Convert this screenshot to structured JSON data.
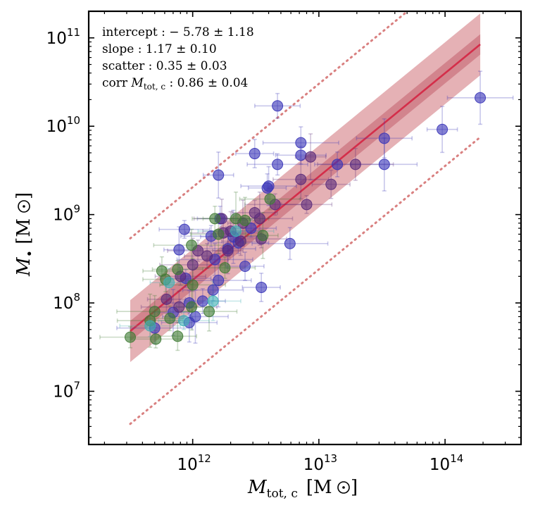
{
  "chart_data": {
    "type": "scatter",
    "xscale": "log",
    "yscale": "log",
    "xlim": [
      150000000000.0,
      400000000000000.0
    ],
    "ylim": [
      2500000.0,
      200000000000.0
    ],
    "xlabel": {
      "main": "M",
      "sub": "tot, c",
      "unit": "[M",
      "unit_close": "]"
    },
    "ylabel": {
      "main": "M",
      "sub": "•",
      "unit": "[M",
      "unit_close": "]"
    },
    "xticks": [
      {
        "value": 1000000000000.0,
        "base": "10",
        "exp": "12"
      },
      {
        "value": 10000000000000.0,
        "base": "10",
        "exp": "13"
      },
      {
        "value": 100000000000000.0,
        "base": "10",
        "exp": "14"
      }
    ],
    "yticks": [
      {
        "value": 10000000.0,
        "base": "10",
        "exp": "7"
      },
      {
        "value": 100000000.0,
        "base": "10",
        "exp": "8"
      },
      {
        "value": 1000000000.0,
        "base": "10",
        "exp": "9"
      },
      {
        "value": 10000000000.0,
        "base": "10",
        "exp": "10"
      },
      {
        "value": 100000000000.0,
        "base": "10",
        "exp": "11"
      }
    ],
    "annotations": [
      "intercept :  − 5.78 ± 1.18",
      "slope :  1.17 ± 0.10",
      "scatter :  0.35 ± 0.03",
      {
        "prefix": "corr ",
        "var": "M",
        "sub": "tot, c",
        "suffix": " :  0.86 ± 0.04"
      }
    ],
    "fit": {
      "intercept": -5.78,
      "slope": 1.17,
      "scatter": 0.35,
      "x_range": [
        320000000000.0,
        190000000000000.0
      ],
      "inner_band": 0.115,
      "line_color": "#d42e4a",
      "band_color": "#e0a3a8",
      "inner_band_color": "#cf7d86",
      "outlier_color": "#d98080"
    },
    "colors": {
      "blue": "#3a35b8",
      "purple": "#5a2a7a",
      "green": "#3f7a34",
      "cyan": "#3fb0b4"
    },
    "series": [
      {
        "name": "blue",
        "points": [
          [
            4700000000000.0,
            17000000000.0
          ],
          [
            190000000000000.0,
            21000000000.0
          ],
          [
            95000000000000.0,
            9200000000.0
          ],
          [
            33000000000000.0,
            7300000000.0
          ],
          [
            7200000000000.0,
            6500000000.0
          ],
          [
            3100000000000.0,
            4900000000.0
          ],
          [
            7200000000000.0,
            4700000000.0
          ],
          [
            4700000000000.0,
            3700000000.0
          ],
          [
            14000000000000.0,
            3700000000.0
          ],
          [
            33000000000000.0,
            3700000000.0
          ],
          [
            1600000000000.0,
            2800000000.0
          ],
          [
            4000000000000.0,
            2100000000.0
          ],
          [
            5900000000000.0,
            470000000.0
          ],
          [
            3500000000000.0,
            150000000.0
          ],
          [
            860000000000.0,
            680000000.0
          ],
          [
            1400000000000.0,
            570000000.0
          ],
          [
            1650000000000.0,
            900000000.0
          ],
          [
            2100000000000.0,
            560000000.0
          ],
          [
            780000000000.0,
            400000000.0
          ],
          [
            1900000000000.0,
            410000000.0
          ],
          [
            1500000000000.0,
            310000000.0
          ],
          [
            2600000000000.0,
            260000000.0
          ],
          [
            880000000000.0,
            190000000.0
          ],
          [
            1450000000000.0,
            140000000.0
          ],
          [
            1200000000000.0,
            105000000.0
          ],
          [
            1050000000000.0,
            70000000.0
          ],
          [
            700000000000.0,
            78000000.0
          ],
          [
            940000000000.0,
            60000000.0
          ],
          [
            500000000000.0,
            52000000.0
          ],
          [
            3900000000000.0,
            2000000000.0
          ],
          [
            2900000000000.0,
            700000000.0
          ],
          [
            2300000000000.0,
            480000000.0
          ],
          [
            940000000000.0,
            100000000.0
          ],
          [
            1600000000000.0,
            180000000.0
          ]
        ]
      },
      {
        "name": "purple",
        "points": [
          [
            8600000000000.0,
            4500000000.0
          ],
          [
            7200000000000.0,
            2500000000.0
          ],
          [
            19500000000000.0,
            3700000000.0
          ],
          [
            12500000000000.0,
            2200000000.0
          ],
          [
            8000000000000.0,
            1300000000.0
          ],
          [
            4500000000000.0,
            1300000000.0
          ],
          [
            3100000000000.0,
            1050000000.0
          ],
          [
            3400000000000.0,
            900000000.0
          ],
          [
            2500000000000.0,
            800000000.0
          ],
          [
            2000000000000.0,
            650000000.0
          ],
          [
            1750000000000.0,
            620000000.0
          ],
          [
            2400000000000.0,
            500000000.0
          ],
          [
            3500000000000.0,
            530000000.0
          ],
          [
            1100000000000.0,
            390000000.0
          ],
          [
            1300000000000.0,
            340000000.0
          ],
          [
            1000000000000.0,
            270000000.0
          ],
          [
            1900000000000.0,
            390000000.0
          ],
          [
            1700000000000.0,
            900000000.0
          ],
          [
            780000000000.0,
            90000000.0
          ],
          [
            620000000000.0,
            110000000.0
          ],
          [
            800000000000.0,
            200000000.0
          ]
        ]
      },
      {
        "name": "green",
        "points": [
          [
            4100000000000.0,
            1500000000.0
          ],
          [
            1500000000000.0,
            900000000.0
          ],
          [
            2200000000000.0,
            900000000.0
          ],
          [
            3600000000000.0,
            580000000.0
          ],
          [
            1600000000000.0,
            600000000.0
          ],
          [
            980000000000.0,
            450000000.0
          ],
          [
            570000000000.0,
            230000000.0
          ],
          [
            760000000000.0,
            240000000.0
          ],
          [
            1800000000000.0,
            250000000.0
          ],
          [
            610000000000.0,
            185000000.0
          ],
          [
            1000000000000.0,
            160000000.0
          ],
          [
            980000000000.0,
            90000000.0
          ],
          [
            1350000000000.0,
            80000000.0
          ],
          [
            500000000000.0,
            80000000.0
          ],
          [
            760000000000.0,
            42000000.0
          ],
          [
            510000000000.0,
            39000000.0
          ],
          [
            320000000000.0,
            41000000.0
          ],
          [
            660000000000.0,
            67000000.0
          ],
          [
            460000000000.0,
            63000000.0
          ],
          [
            2600000000000.0,
            860000000.0
          ]
        ]
      },
      {
        "name": "cyan",
        "points": [
          [
            1450000000000.0,
            105000000.0
          ],
          [
            2200000000000.0,
            650000000.0
          ],
          [
            650000000000.0,
            170000000.0
          ],
          [
            850000000000.0,
            63000000.0
          ],
          [
            460000000000.0,
            55000000.0
          ]
        ]
      }
    ]
  }
}
